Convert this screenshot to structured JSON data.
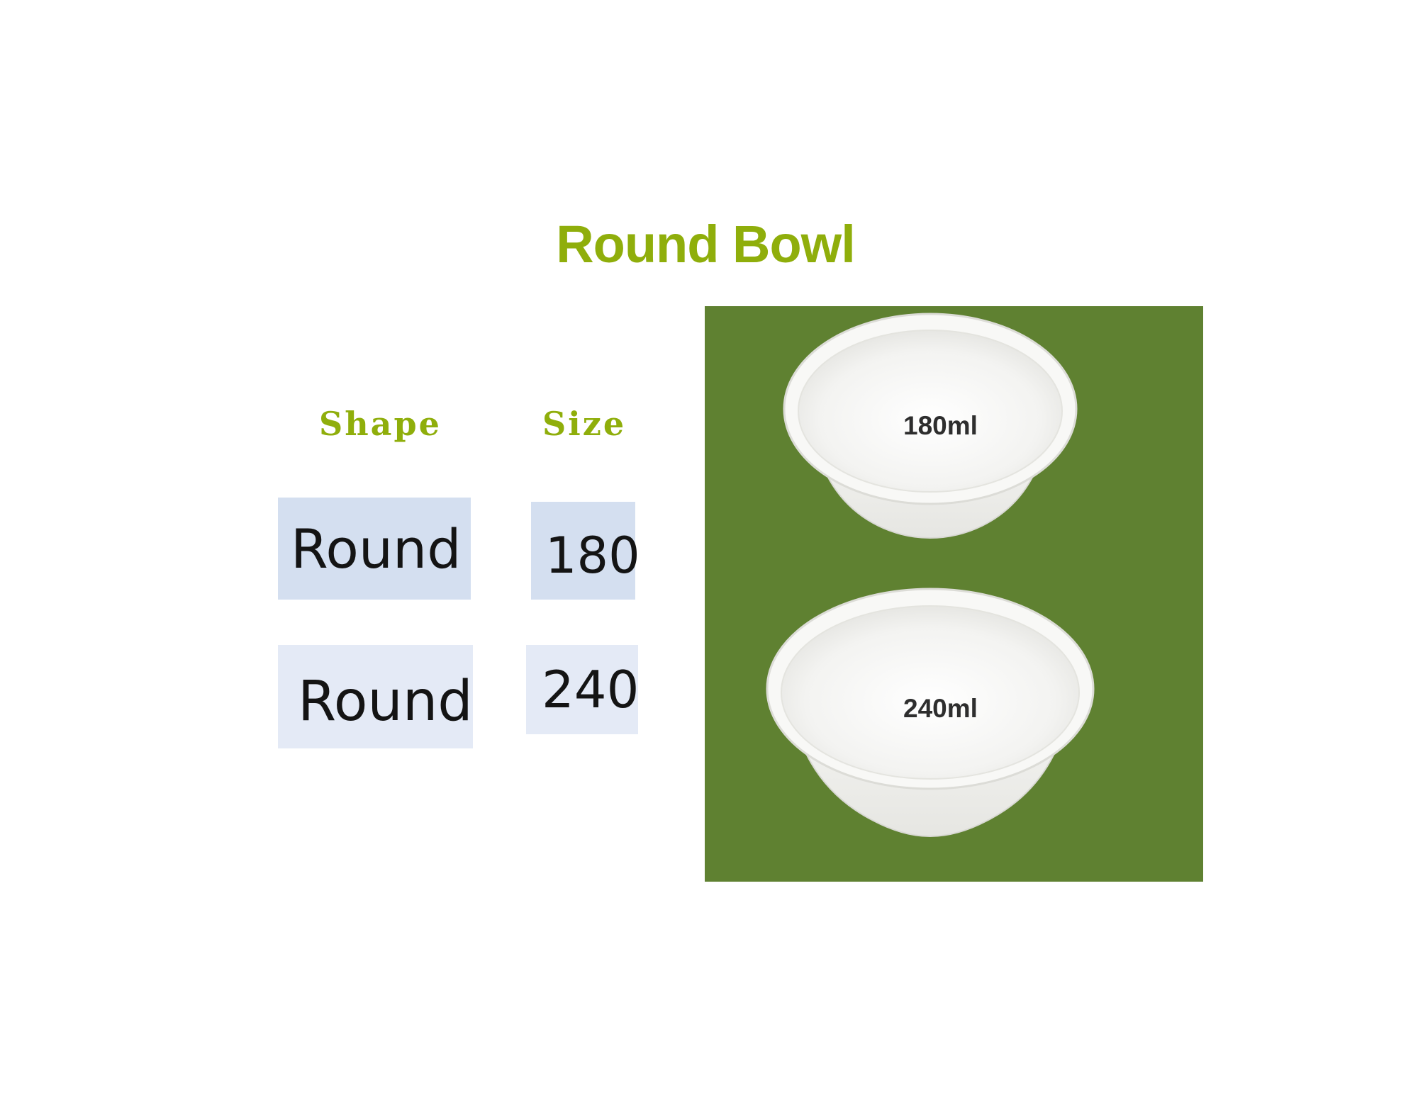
{
  "title": "Round Bowl",
  "table": {
    "headers": {
      "shape": "Shape",
      "size": "Size"
    },
    "rows": [
      {
        "shape": "Round",
        "size": "180"
      },
      {
        "shape": "Round",
        "size": "240"
      }
    ]
  },
  "product_image": {
    "background_color": "#5f8131",
    "bowls": [
      {
        "label": "180ml"
      },
      {
        "label": "240ml"
      }
    ]
  },
  "colors": {
    "accent": "#8fae0b",
    "cell_fill_1": "#d4dff0",
    "cell_fill_2": "#e4eaf6"
  }
}
